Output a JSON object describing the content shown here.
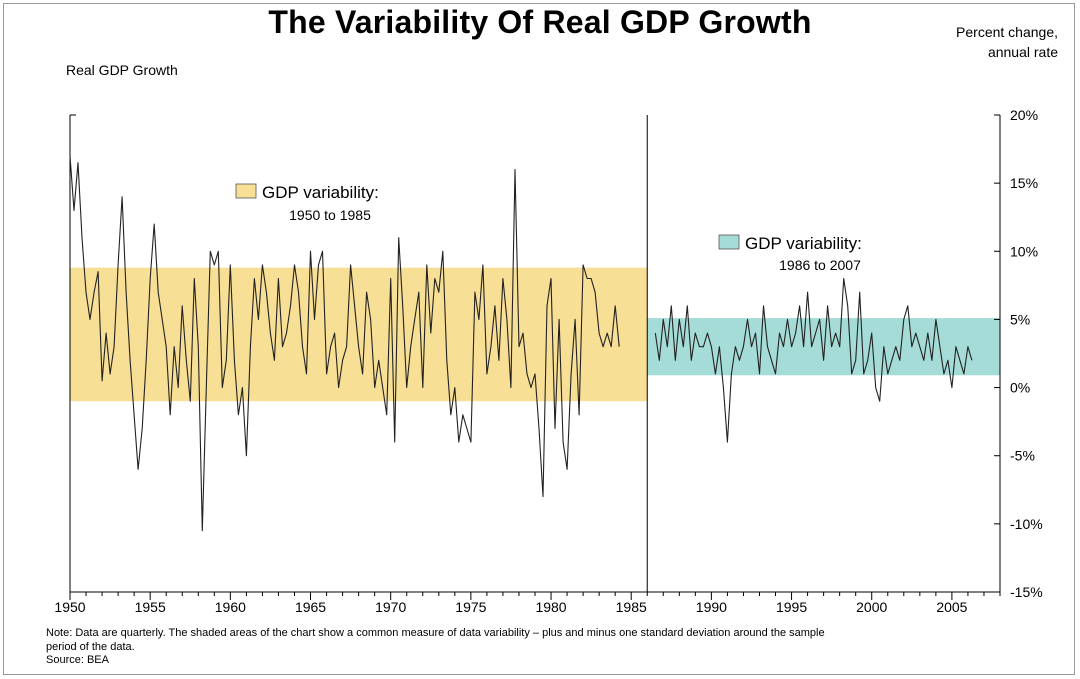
{
  "title": "The Variability Of Real GDP Growth",
  "left_axis_label": "Real GDP Growth",
  "right_axis_label": [
    "Percent change,",
    "annual rate"
  ],
  "note_lines": [
    "Note: Data are quarterly. The shaded areas of the chart show a common measure of data variability – plus and minus one standard deviation around the sample",
    "period of the data.",
    "Source: BEA"
  ],
  "colors": {
    "band1": "#f7df95",
    "band2": "#a5dcd8",
    "line": "#222222"
  },
  "chart_data": {
    "type": "line",
    "xlim": [
      1950,
      2008
    ],
    "ylim": [
      -15,
      20
    ],
    "x_ticks": [
      1950,
      1955,
      1960,
      1965,
      1970,
      1975,
      1980,
      1985,
      1990,
      1995,
      2000,
      2005
    ],
    "y_ticks": [
      -15,
      -10,
      -5,
      0,
      5,
      10,
      15,
      20
    ],
    "y_tick_labels": [
      "-15%",
      "-10%",
      "-5%",
      "0%",
      "5%",
      "10%",
      "15%",
      "20%"
    ],
    "divider_x": 1986,
    "bands": [
      {
        "label": "GDP variability:",
        "sublabel": "1950 to 1985",
        "x_range": [
          1950,
          1986
        ],
        "y_range": [
          -1,
          8.8
        ]
      },
      {
        "label": "GDP variability:",
        "sublabel": "1986 to 2007",
        "x_range": [
          1986,
          2008
        ],
        "y_range": [
          0.9,
          5.1
        ]
      }
    ],
    "series": [
      {
        "x_start": 1950,
        "step": 0.25,
        "values": [
          17,
          13,
          16.5,
          11,
          7,
          5,
          7,
          8.5,
          0.5,
          4,
          1,
          3,
          9,
          14,
          7,
          2,
          -2,
          -6,
          -3,
          2,
          8,
          12,
          7,
          5,
          3,
          -2,
          3,
          0,
          6,
          2,
          -1,
          8,
          3,
          -10.5,
          0,
          10,
          9,
          10,
          0,
          2,
          9,
          2,
          -2,
          0,
          -5,
          3,
          8,
          5,
          9,
          7,
          4,
          2,
          8,
          3,
          4,
          6,
          9,
          7,
          3,
          1,
          10,
          5,
          9,
          10,
          1,
          3,
          4,
          0,
          2,
          3,
          9,
          6,
          3,
          1,
          7,
          5,
          0,
          2,
          0,
          -2,
          8,
          -4,
          11,
          6,
          0,
          3,
          5,
          7,
          0,
          9,
          4,
          8,
          7,
          10,
          2,
          -2,
          0,
          -4,
          -2,
          -3,
          -4,
          7,
          5,
          9,
          1,
          3,
          6,
          2,
          8,
          5,
          0,
          16,
          3,
          4,
          1,
          0,
          1,
          -3,
          -8,
          6,
          8,
          -3,
          5,
          -4,
          -6,
          1,
          5,
          -2,
          9,
          8,
          8,
          7,
          4,
          3,
          4,
          3,
          6,
          3
        ]
      },
      {
        "x_start": 1986.5,
        "step": 0.25,
        "values": [
          4,
          2,
          5,
          3,
          6,
          2,
          5,
          3,
          6,
          2,
          4,
          3,
          3,
          4,
          3,
          1,
          3,
          0,
          -4,
          1,
          3,
          2,
          3,
          5,
          3,
          4,
          1,
          6,
          3,
          2,
          1,
          4,
          3,
          5,
          3,
          4,
          6,
          3,
          7,
          3,
          4,
          5,
          2,
          6,
          3,
          4,
          3,
          8,
          6,
          1,
          2,
          7,
          1,
          2,
          4,
          0,
          -1,
          3,
          1,
          2,
          3,
          2,
          5,
          6,
          3,
          4,
          3,
          2,
          4,
          2,
          5,
          3,
          1,
          2,
          0,
          3,
          2,
          1,
          3,
          2
        ]
      }
    ]
  }
}
